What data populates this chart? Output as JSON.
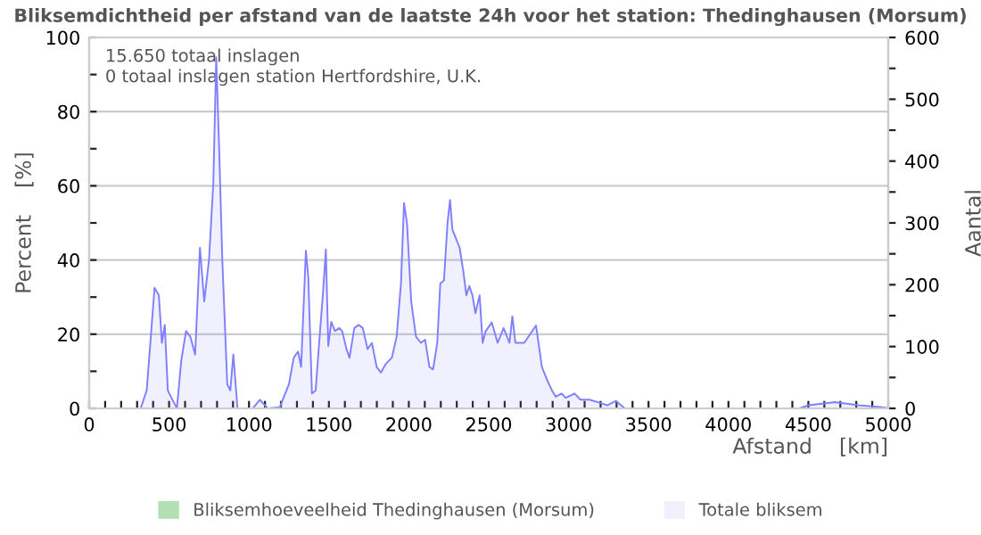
{
  "chart_data": {
    "type": "area",
    "title": "Bliksemdichtheid per afstand van de laatste 24h voor het station: Thedinghausen (Morsum)",
    "xlabel": "Afstand    [km]",
    "ylabel": "Percent    [%]",
    "y2label": "Aantal",
    "annotations": [
      "15.650 totaal inslagen",
      "0 totaal inslagen station Hertfordshire, U.K."
    ],
    "xlim": [
      0,
      5000
    ],
    "ylim": [
      0,
      100
    ],
    "y2lim": [
      0,
      600
    ],
    "xticks": [
      0,
      {
        "value": 100,
        "label": null
      },
      {
        "value": 200,
        "label": null
      },
      {
        "value": 300,
        "label": null
      },
      {
        "value": 400,
        "label": null
      },
      500,
      {
        "value": 600,
        "label": null
      },
      {
        "value": 700,
        "label": null
      },
      {
        "value": 800,
        "label": null
      },
      {
        "value": 900,
        "label": null
      },
      1000,
      {
        "value": 1100,
        "label": null
      },
      {
        "value": 1200,
        "label": null
      },
      {
        "value": 1300,
        "label": null
      },
      {
        "value": 1400,
        "label": null
      },
      1500,
      {
        "value": 1600,
        "label": null
      },
      {
        "value": 1700,
        "label": null
      },
      {
        "value": 1800,
        "label": null
      },
      {
        "value": 1900,
        "label": null
      },
      2000,
      {
        "value": 2100,
        "label": null
      },
      {
        "value": 2200,
        "label": null
      },
      {
        "value": 2300,
        "label": null
      },
      {
        "value": 2400,
        "label": null
      },
      2500,
      {
        "value": 2600,
        "label": null
      },
      {
        "value": 2700,
        "label": null
      },
      {
        "value": 2800,
        "label": null
      },
      {
        "value": 2900,
        "label": null
      },
      3000,
      {
        "value": 3100,
        "label": null
      },
      {
        "value": 3200,
        "label": null
      },
      {
        "value": 3300,
        "label": null
      },
      {
        "value": 3400,
        "label": null
      },
      3500,
      {
        "value": 3600,
        "label": null
      },
      {
        "value": 3700,
        "label": null
      },
      {
        "value": 3800,
        "label": null
      },
      {
        "value": 3900,
        "label": null
      },
      4000,
      {
        "value": 4100,
        "label": null
      },
      {
        "value": 4200,
        "label": null
      },
      {
        "value": 4300,
        "label": null
      },
      {
        "value": 4400,
        "label": null
      },
      4500,
      {
        "value": 4600,
        "label": null
      },
      {
        "value": 4700,
        "label": null
      },
      {
        "value": 4800,
        "label": null
      },
      {
        "value": 4900,
        "label": null
      },
      5000
    ],
    "yticks": [
      0,
      {
        "value": 10,
        "label": null
      },
      20,
      {
        "value": 30,
        "label": null
      },
      40,
      {
        "value": 50,
        "label": null
      },
      60,
      {
        "value": 70,
        "label": null
      },
      80,
      {
        "value": 90,
        "label": null
      },
      100
    ],
    "y2ticks": [
      0,
      {
        "value": 50,
        "label": null
      },
      100,
      {
        "value": 150,
        "label": null
      },
      200,
      {
        "value": 250,
        "label": null
      },
      300,
      {
        "value": 350,
        "label": null
      },
      400,
      {
        "value": 450,
        "label": null
      },
      500,
      {
        "value": 550,
        "label": null
      },
      600
    ],
    "grid": "y",
    "legend": "bottom",
    "series": [
      {
        "name": "Bliksemhoeveelheid Thedinghausen (Morsum)",
        "color": "#b3e0b3"
      },
      {
        "name": "Totale bliksem",
        "color": "#8080ff",
        "axis": "y2",
        "x": [
          0,
          322,
          360,
          409,
          436,
          455,
          473,
          492,
          511,
          549,
          576,
          606,
          633,
          663,
          693,
          720,
          750,
          777,
          795,
          814,
          833,
          864,
          883,
          902,
          928,
          1023,
          1068,
          1117,
          1193,
          1250,
          1280,
          1307,
          1326,
          1356,
          1371,
          1394,
          1417,
          1439,
          1462,
          1481,
          1496,
          1515,
          1538,
          1565,
          1583,
          1610,
          1629,
          1659,
          1686,
          1712,
          1742,
          1769,
          1799,
          1826,
          1856,
          1894,
          1924,
          1951,
          1970,
          1989,
          2015,
          2045,
          2076,
          2102,
          2129,
          2152,
          2178,
          2197,
          2220,
          2242,
          2258,
          2273,
          2295,
          2318,
          2341,
          2360,
          2379,
          2398,
          2417,
          2443,
          2462,
          2481,
          2519,
          2556,
          2593,
          2630,
          2648,
          2667,
          2722,
          2759,
          2796,
          2833,
          2870,
          2896,
          2919,
          2956,
          2981,
          3037,
          3074,
          3130,
          3185,
          3241,
          3296,
          3352,
          3463,
          4444,
          4500,
          4667,
          4815,
          4963,
          5000
        ],
        "values": [
          0,
          0,
          29,
          195,
          183,
          106,
          135,
          29,
          19,
          0,
          77,
          125,
          116,
          87,
          260,
          173,
          241,
          366,
          568,
          414,
          241,
          39,
          29,
          87,
          0,
          0,
          14,
          0,
          2,
          39,
          82,
          92,
          67,
          255,
          212,
          24,
          29,
          106,
          183,
          257,
          101,
          140,
          125,
          130,
          125,
          96,
          82,
          130,
          135,
          130,
          96,
          106,
          67,
          58,
          72,
          82,
          116,
          202,
          332,
          299,
          173,
          116,
          106,
          111,
          67,
          63,
          106,
          202,
          207,
          299,
          337,
          289,
          275,
          260,
          222,
          183,
          198,
          183,
          154,
          183,
          106,
          125,
          139,
          106,
          130,
          106,
          149,
          106,
          106,
          120,
          134,
          67,
          43,
          29,
          19,
          24,
          17,
          24,
          14,
          14,
          10,
          5,
          12,
          0,
          0,
          0,
          5,
          10,
          5,
          2,
          0
        ]
      }
    ]
  }
}
